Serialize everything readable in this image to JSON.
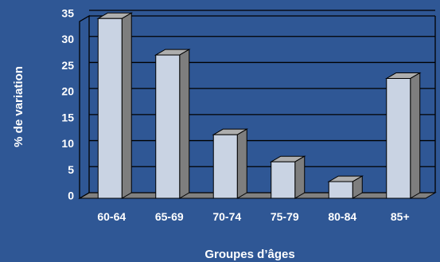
{
  "chart_data": {
    "type": "bar",
    "title": "",
    "xlabel": "Groupes d’âges",
    "ylabel": "% de variation",
    "categories": [
      "60-64",
      "65-69",
      "70-74",
      "75-79",
      "80-84",
      "85+"
    ],
    "values": [
      34.5,
      27.5,
      12.2,
      7.0,
      3.2,
      23.0
    ],
    "ylim": [
      0,
      35
    ],
    "yticks": [
      "0",
      "5",
      "10",
      "15",
      "20",
      "25",
      "30",
      "35"
    ],
    "grid": true,
    "legend": "none",
    "style": "3d-bars",
    "colors": {
      "background": "#2f5795",
      "plot_background": "#2f5795",
      "bar_front": "#c9d3e3",
      "bar_side": "#7e7e7e",
      "bar_top": "#aeaeae",
      "gridline": "#000000",
      "text": "#ffffff"
    }
  }
}
